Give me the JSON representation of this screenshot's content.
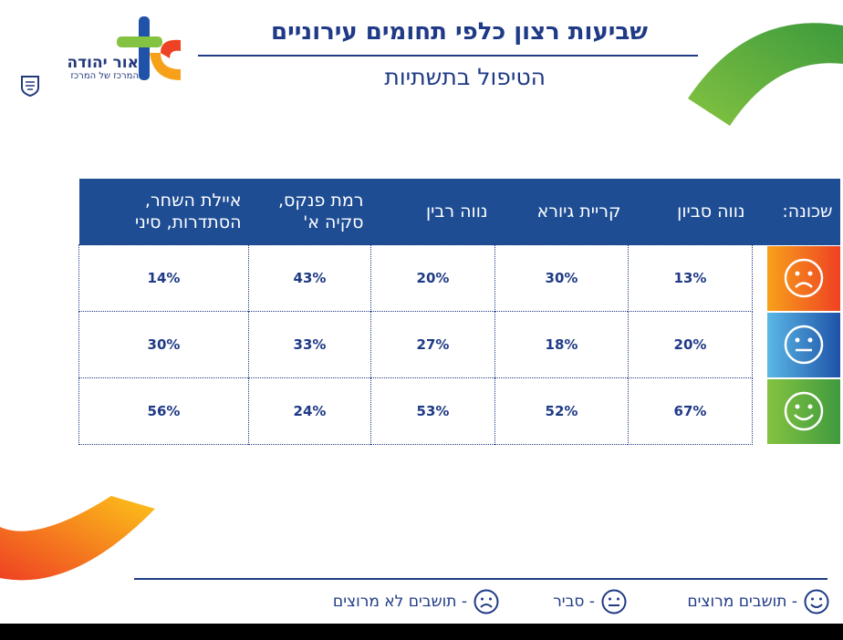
{
  "logo": {
    "name": "אור יהודה",
    "subtitle": "המרכז של המרכז"
  },
  "header": {
    "title": "שביעות רצון כלפי תחומים עירוניים",
    "subtitle": "הטיפול בתשתיות"
  },
  "table": {
    "key_header": "שכונה:",
    "columns": [
      {
        "label": "נווה סביון"
      },
      {
        "label": "קריית גיורא"
      },
      {
        "label": "נווה רבין"
      },
      {
        "label": "רמת פנקס, סקיה א'"
      },
      {
        "label": "איילת השחר, הסתדרות, סיני"
      }
    ],
    "rows": [
      {
        "face": "unhappy-face-icon",
        "values": [
          "13%",
          "30%",
          "20%",
          "43%",
          "14%"
        ]
      },
      {
        "face": "neutral-face-icon",
        "values": [
          "20%",
          "18%",
          "27%",
          "33%",
          "30%"
        ]
      },
      {
        "face": "happy-face-icon",
        "values": [
          "67%",
          "52%",
          "53%",
          "24%",
          "56%"
        ]
      }
    ]
  },
  "legend": {
    "happy": "- תושבים מרוצים",
    "neutral": "- סביר",
    "unhappy": "- תושבים לא מרוצים"
  },
  "colors": {
    "navy": "#1f3a86",
    "header_bg": "#1e4d94",
    "green": "#5aae3f",
    "orange": "#f7a11a"
  }
}
